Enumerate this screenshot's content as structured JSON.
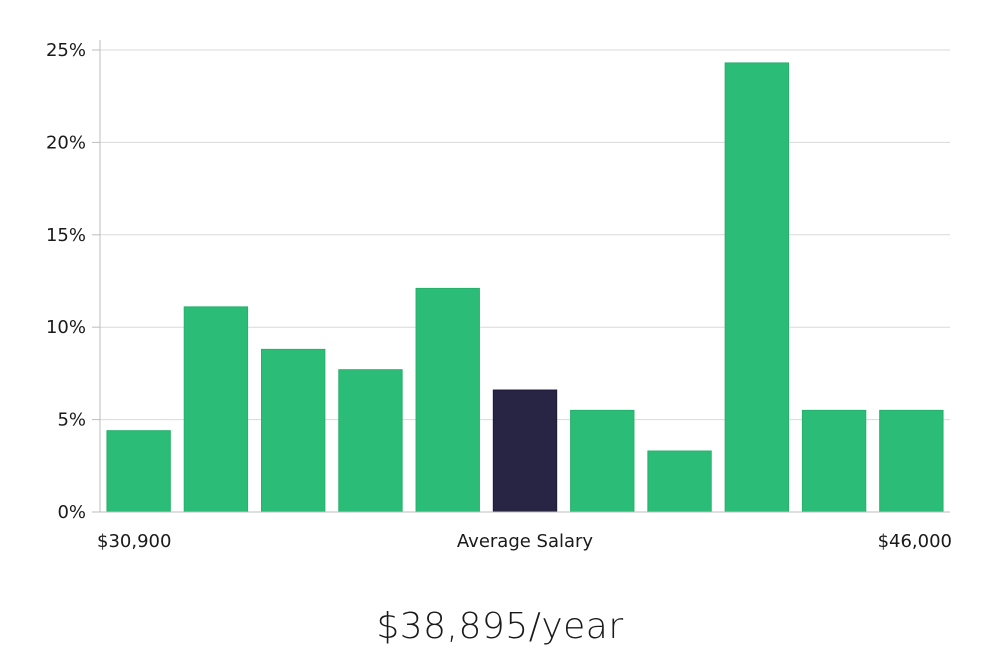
{
  "chart_data": {
    "type": "bar",
    "values": [
      4.4,
      11.1,
      8.8,
      7.7,
      12.1,
      6.6,
      5.5,
      3.3,
      24.3,
      5.5,
      5.5
    ],
    "highlight_index": 5,
    "ylim": [
      0,
      25
    ],
    "yticks": [
      "0%",
      "5%",
      "10%",
      "15%",
      "20%",
      "25%"
    ],
    "x_left_label": "$30,900",
    "x_center_label": "Average Salary",
    "x_right_label": "$46,000",
    "grid": true,
    "colors": {
      "bar": "#2bbd77",
      "highlight": "#282444",
      "grid": "#d9d9d9",
      "axis": "#bdbdbd"
    }
  },
  "headline": "$38,895/year"
}
